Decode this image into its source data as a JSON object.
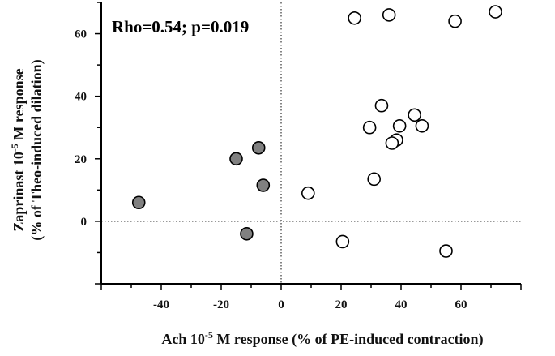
{
  "chart_data": {
    "type": "scatter",
    "xlabel_main": "Ach 10",
    "xlabel_sup": "-5",
    "xlabel_rest": " M response (% of PE-induced contraction)",
    "ylabel_line1_main": "Zaprinast 10",
    "ylabel_line1_sup": "-5",
    "ylabel_line1_rest": " M response",
    "ylabel_line2": "(% of Theo-induced dilation)",
    "annotation": "Rho=0.54; p=0.019",
    "xlim": [
      -60,
      80
    ],
    "ylim": [
      -20,
      70
    ],
    "x_ticks": [
      -40,
      -20,
      0,
      20,
      40,
      60
    ],
    "y_ticks": [
      0,
      20,
      40,
      60
    ],
    "x_tick_labels": [
      "-40",
      "-20",
      "0",
      "20",
      "40",
      "60"
    ],
    "y_tick_labels": [
      "0",
      "20",
      "40",
      "60"
    ],
    "reference_lines": {
      "x": 0,
      "y": 0
    },
    "series": [
      {
        "fill": "#808080",
        "points": [
          {
            "x": -47.5,
            "y": 6
          },
          {
            "x": -15,
            "y": 20
          },
          {
            "x": -7.5,
            "y": 23.5
          },
          {
            "x": -6,
            "y": 11.5
          },
          {
            "x": -11.5,
            "y": -4
          }
        ]
      },
      {
        "fill": "#ffffff",
        "points": [
          {
            "x": 24.5,
            "y": 65
          },
          {
            "x": 36,
            "y": 66
          },
          {
            "x": 58,
            "y": 64
          },
          {
            "x": 71.5,
            "y": 67
          },
          {
            "x": 33.5,
            "y": 37
          },
          {
            "x": 44.5,
            "y": 34
          },
          {
            "x": 29.5,
            "y": 30
          },
          {
            "x": 39.5,
            "y": 30.5
          },
          {
            "x": 47,
            "y": 30.5
          },
          {
            "x": 38.5,
            "y": 26
          },
          {
            "x": 37,
            "y": 25
          },
          {
            "x": 31,
            "y": 13.5
          },
          {
            "x": 9,
            "y": 9
          },
          {
            "x": 20.5,
            "y": -6.5
          },
          {
            "x": 55,
            "y": -9.5
          }
        ]
      }
    ]
  }
}
